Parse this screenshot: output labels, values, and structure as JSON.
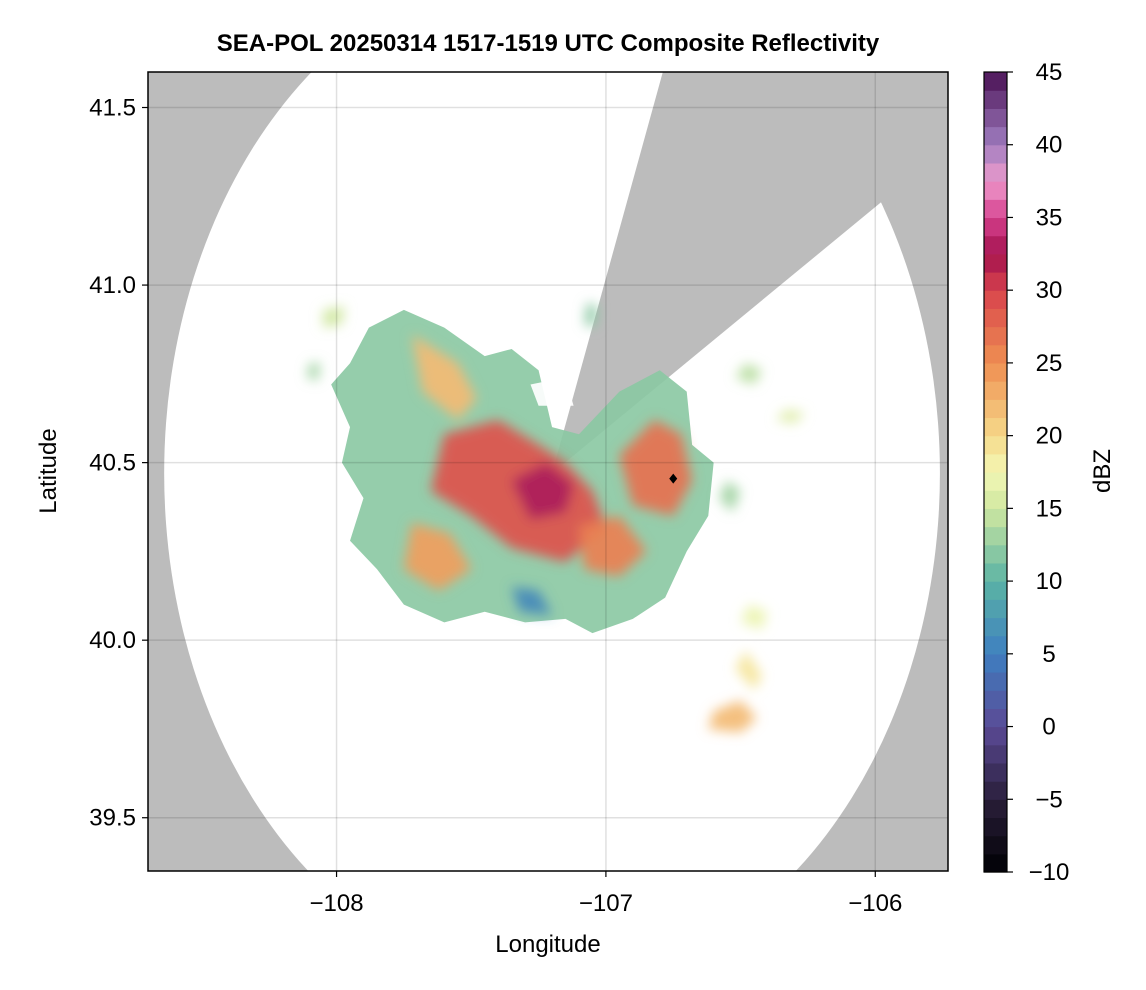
{
  "chart_data": {
    "type": "heatmap",
    "title": "SEA-POL 20250314 1517-1519 UTC Composite Reflectivity",
    "xlabel": "Longitude",
    "ylabel": "Latitude",
    "xlim": [
      -108.7,
      -105.73
    ],
    "ylim": [
      39.35,
      41.6
    ],
    "xticks": [
      -108,
      -107,
      -106
    ],
    "yticks": [
      39.5,
      40.0,
      40.5,
      41.0,
      41.5
    ],
    "xtick_labels": [
      "−108",
      "−107",
      "−106"
    ],
    "ytick_labels": [
      "39.5",
      "40.0",
      "40.5",
      "41.0",
      "41.5"
    ],
    "grid": true,
    "background_color": "#bcbcbc",
    "coverage_color": "#ffffff",
    "radar_center": {
      "lon": -107.2,
      "lat": 40.47
    },
    "radar_range_deg": 1.44,
    "blocked_sectors_bearing_deg": [
      [
        20,
        58
      ]
    ],
    "marker": {
      "lon": -106.75,
      "lat": 40.455,
      "shape": "diamond",
      "color": "#000000"
    },
    "colorbar": {
      "label": "dBZ",
      "min": -10,
      "max": 45,
      "ticks": [
        -10,
        -5,
        0,
        5,
        10,
        15,
        20,
        25,
        30,
        35,
        40,
        45
      ],
      "tick_labels": [
        "−10",
        "−5",
        "0",
        "5",
        "10",
        "15",
        "20",
        "25",
        "30",
        "35",
        "40",
        "45"
      ],
      "colormap": [
        [
          -10,
          "#000004"
        ],
        [
          -5,
          "#2a1f3a"
        ],
        [
          0,
          "#5b4a96"
        ],
        [
          5,
          "#3e7fc0"
        ],
        [
          10,
          "#5bb3a4"
        ],
        [
          15,
          "#cfe7a0"
        ],
        [
          17.5,
          "#f3f7b5"
        ],
        [
          20,
          "#f6d98a"
        ],
        [
          25,
          "#ef8f52"
        ],
        [
          30,
          "#d8434c"
        ],
        [
          32.5,
          "#a3124e"
        ],
        [
          35,
          "#d6408e"
        ],
        [
          37.5,
          "#ee9bcc"
        ],
        [
          40,
          "#a07dc0"
        ],
        [
          45,
          "#4a1155"
        ]
      ]
    },
    "echo_regions": [
      {
        "name": "main",
        "polygon": [
          [
            -107.95,
            40.78
          ],
          [
            -107.88,
            40.88
          ],
          [
            -107.75,
            40.93
          ],
          [
            -107.6,
            40.88
          ],
          [
            -107.45,
            40.8
          ],
          [
            -107.35,
            40.82
          ],
          [
            -107.25,
            40.76
          ],
          [
            -107.2,
            40.6
          ],
          [
            -107.1,
            40.58
          ],
          [
            -106.95,
            40.7
          ],
          [
            -106.8,
            40.76
          ],
          [
            -106.7,
            40.7
          ],
          [
            -106.68,
            40.55
          ],
          [
            -106.6,
            40.5
          ],
          [
            -106.62,
            40.35
          ],
          [
            -106.7,
            40.25
          ],
          [
            -106.78,
            40.12
          ],
          [
            -106.9,
            40.06
          ],
          [
            -107.05,
            40.02
          ],
          [
            -107.15,
            40.06
          ],
          [
            -107.3,
            40.05
          ],
          [
            -107.45,
            40.08
          ],
          [
            -107.6,
            40.05
          ],
          [
            -107.75,
            40.1
          ],
          [
            -107.85,
            40.2
          ],
          [
            -107.95,
            40.28
          ],
          [
            -107.9,
            40.4
          ],
          [
            -107.98,
            40.5
          ],
          [
            -107.95,
            40.6
          ],
          [
            -108.02,
            40.72
          ]
        ],
        "value": 12
      },
      {
        "name": "core-1",
        "polygon": [
          [
            -107.6,
            40.58
          ],
          [
            -107.4,
            40.62
          ],
          [
            -107.25,
            40.55
          ],
          [
            -107.15,
            40.5
          ],
          [
            -107.05,
            40.42
          ],
          [
            -107.0,
            40.32
          ],
          [
            -107.15,
            40.22
          ],
          [
            -107.35,
            40.26
          ],
          [
            -107.5,
            40.35
          ],
          [
            -107.65,
            40.42
          ]
        ],
        "value": 29
      },
      {
        "name": "core-2",
        "polygon": [
          [
            -107.35,
            40.45
          ],
          [
            -107.22,
            40.5
          ],
          [
            -107.12,
            40.44
          ],
          [
            -107.15,
            40.36
          ],
          [
            -107.28,
            40.34
          ]
        ],
        "value": 33
      },
      {
        "name": "core-3",
        "polygon": [
          [
            -106.95,
            40.52
          ],
          [
            -106.82,
            40.62
          ],
          [
            -106.72,
            40.58
          ],
          [
            -106.68,
            40.45
          ],
          [
            -106.75,
            40.35
          ],
          [
            -106.9,
            40.38
          ]
        ],
        "value": 27
      },
      {
        "name": "core-4",
        "polygon": [
          [
            -107.1,
            40.32
          ],
          [
            -106.95,
            40.35
          ],
          [
            -106.85,
            40.25
          ],
          [
            -106.95,
            40.18
          ],
          [
            -107.08,
            40.2
          ]
        ],
        "value": 26
      },
      {
        "name": "arm-nw",
        "polygon": [
          [
            -107.72,
            40.86
          ],
          [
            -107.55,
            40.78
          ],
          [
            -107.48,
            40.68
          ],
          [
            -107.55,
            40.62
          ],
          [
            -107.68,
            40.7
          ]
        ],
        "value": 22
      },
      {
        "name": "sw-lobe",
        "polygon": [
          [
            -107.72,
            40.33
          ],
          [
            -107.58,
            40.3
          ],
          [
            -107.5,
            40.2
          ],
          [
            -107.62,
            40.14
          ],
          [
            -107.75,
            40.2
          ]
        ],
        "value": 24
      },
      {
        "name": "s-blue",
        "polygon": [
          [
            -107.35,
            40.15
          ],
          [
            -107.25,
            40.14
          ],
          [
            -107.2,
            40.07
          ],
          [
            -107.32,
            40.08
          ]
        ],
        "value": 6
      },
      {
        "name": "gap-n",
        "polygon": [
          [
            -107.28,
            40.72
          ],
          [
            -107.15,
            40.74
          ],
          [
            -107.12,
            40.66
          ],
          [
            -107.25,
            40.66
          ]
        ],
        "value": null
      },
      {
        "name": "cell-e1",
        "polygon": [
          [
            -106.48,
            40.78
          ],
          [
            -106.42,
            40.76
          ],
          [
            -106.45,
            40.72
          ],
          [
            -106.52,
            40.74
          ]
        ],
        "value": 14
      },
      {
        "name": "cell-e2",
        "polygon": [
          [
            -106.33,
            40.65
          ],
          [
            -106.26,
            40.64
          ],
          [
            -106.3,
            40.61
          ],
          [
            -106.37,
            40.62
          ]
        ],
        "value": 16
      },
      {
        "name": "cell-e3",
        "polygon": [
          [
            -106.55,
            40.45
          ],
          [
            -106.5,
            40.42
          ],
          [
            -106.53,
            40.36
          ],
          [
            -106.58,
            40.4
          ]
        ],
        "value": 13
      },
      {
        "name": "cell-s1",
        "polygon": [
          [
            -106.47,
            40.1
          ],
          [
            -106.4,
            40.08
          ],
          [
            -106.42,
            40.03
          ],
          [
            -106.5,
            40.05
          ]
        ],
        "value": 17
      },
      {
        "name": "cell-s2",
        "polygon": [
          [
            -106.48,
            39.97
          ],
          [
            -106.42,
            39.9
          ],
          [
            -106.45,
            39.86
          ],
          [
            -106.52,
            39.92
          ]
        ],
        "value": 19
      },
      {
        "name": "cell-s3",
        "polygon": [
          [
            -106.6,
            39.8
          ],
          [
            -106.5,
            39.83
          ],
          [
            -106.44,
            39.78
          ],
          [
            -106.5,
            39.74
          ],
          [
            -106.62,
            39.75
          ]
        ],
        "value": 22
      },
      {
        "name": "cell-w1",
        "polygon": [
          [
            -108.05,
            40.93
          ],
          [
            -107.97,
            40.94
          ],
          [
            -107.98,
            40.89
          ],
          [
            -108.05,
            40.88
          ]
        ],
        "value": 15
      },
      {
        "name": "cell-w2",
        "polygon": [
          [
            -108.1,
            40.78
          ],
          [
            -108.06,
            40.78
          ],
          [
            -108.07,
            40.73
          ],
          [
            -108.11,
            40.74
          ]
        ],
        "value": 13
      },
      {
        "name": "cell-nc",
        "polygon": [
          [
            -107.07,
            40.95
          ],
          [
            -107.03,
            40.94
          ],
          [
            -107.04,
            40.88
          ],
          [
            -107.08,
            40.89
          ]
        ],
        "value": 12
      }
    ]
  }
}
